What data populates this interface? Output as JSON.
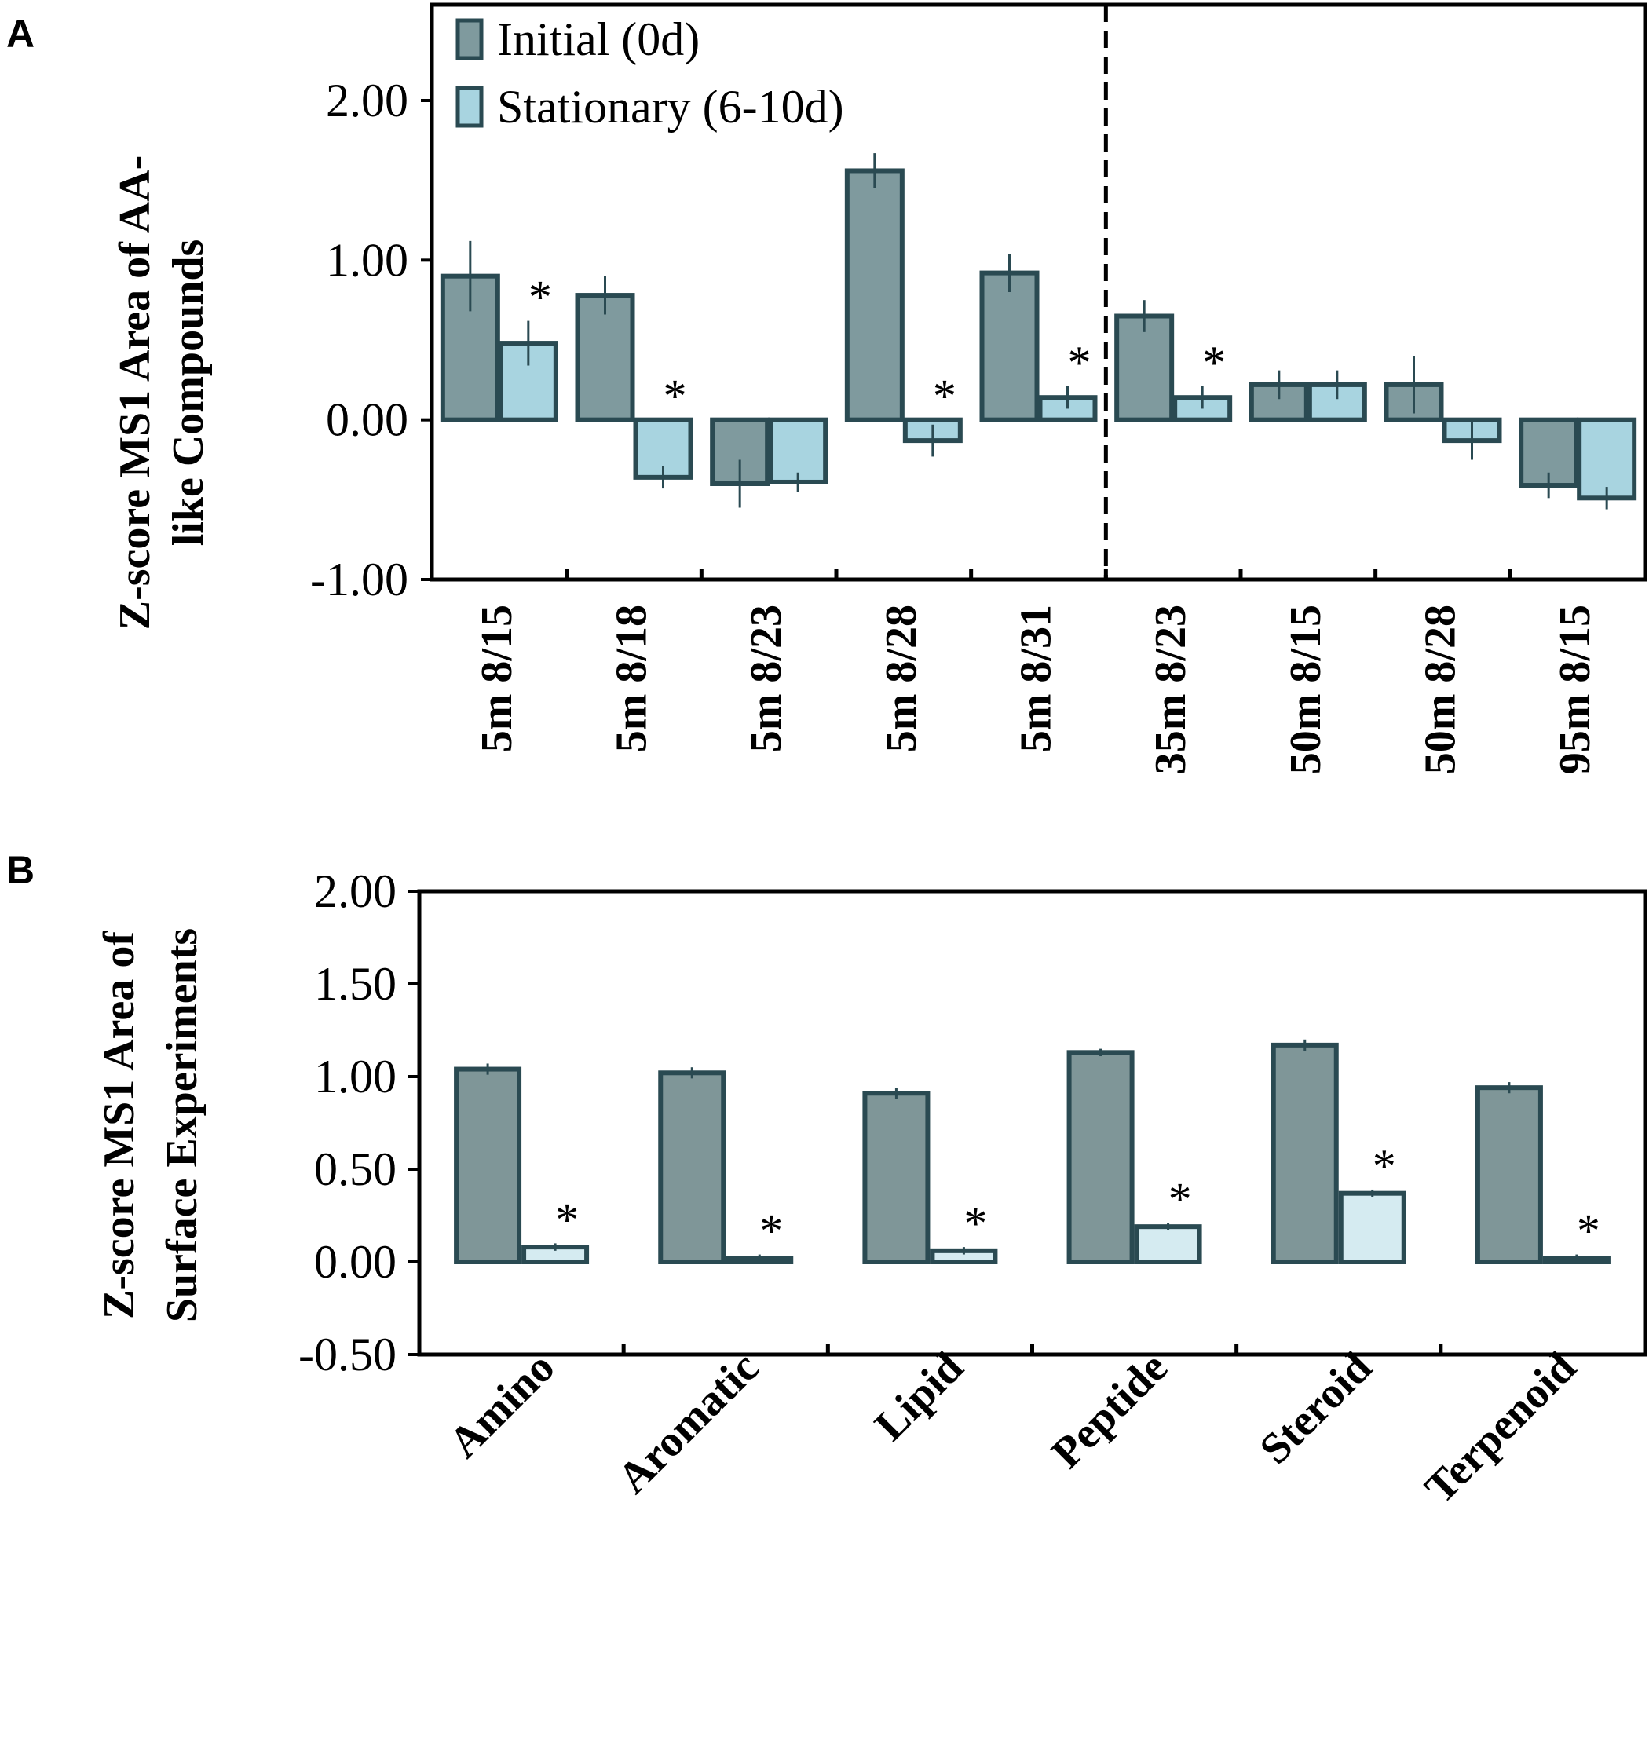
{
  "colors": {
    "initial_A": "#7f9a9e",
    "stationary_A": "#a8d4e0",
    "initial_B": "#7f9698",
    "stationary_B": "#d5ebf1",
    "edge": "#2a4a52",
    "axis": "#000000"
  },
  "chart_data": [
    {
      "panel": "A",
      "type": "bar",
      "title": "",
      "ylabel_lines": [
        "Z-score MS1 Area of AA-",
        "like Compounds"
      ],
      "xlabel": "",
      "ylim": [
        -1.0,
        2.6
      ],
      "yticks": [
        -1.0,
        0.0,
        1.0,
        2.0
      ],
      "ytick_labels": [
        "-1.00",
        "0.00",
        "1.00",
        "2.00"
      ],
      "legend": {
        "placement": "top-left",
        "entries": [
          "Initial (0d)",
          "Stationary (6-10d)"
        ]
      },
      "divider_after_category_index": 4,
      "categories": [
        "5m 8/15",
        "5m 8/18",
        "5m 8/23",
        "5m 8/28",
        "5m 8/31",
        "35m 8/23",
        "50m 8/15",
        "50m 8/28",
        "95m 8/15"
      ],
      "series": [
        {
          "name": "Initial (0d)",
          "values": [
            0.9,
            0.78,
            -0.4,
            1.56,
            0.92,
            0.65,
            0.22,
            0.22,
            -0.41
          ],
          "errors": [
            0.22,
            0.12,
            0.15,
            0.11,
            0.12,
            0.1,
            0.09,
            0.18,
            0.08
          ]
        },
        {
          "name": "Stationary (6-10d)",
          "values": [
            0.48,
            -0.36,
            -0.39,
            -0.13,
            0.14,
            0.14,
            0.22,
            -0.13,
            -0.49
          ],
          "errors": [
            0.14,
            0.07,
            0.06,
            0.1,
            0.07,
            0.07,
            0.09,
            0.12,
            0.07
          ]
        }
      ],
      "significance": [
        {
          "category_index": 0,
          "label": "*"
        },
        {
          "category_index": 1,
          "label": "*"
        },
        {
          "category_index": 3,
          "label": "*"
        },
        {
          "category_index": 4,
          "label": "*"
        },
        {
          "category_index": 5,
          "label": "*"
        }
      ]
    },
    {
      "panel": "B",
      "type": "bar",
      "title": "",
      "ylabel_lines": [
        "Z-score MS1 Area of",
        "Surface Experiments"
      ],
      "xlabel": "",
      "ylim": [
        -0.5,
        2.0
      ],
      "yticks": [
        -0.5,
        0.0,
        0.5,
        1.0,
        1.5,
        2.0
      ],
      "ytick_labels": [
        "-0.50",
        "0.00",
        "0.50",
        "1.00",
        "1.50",
        "2.00"
      ],
      "categories": [
        "Amino",
        "Aromatic",
        "Lipid",
        "Peptide",
        "Steroid",
        "Terpenoid"
      ],
      "series": [
        {
          "name": "Initial (0d)",
          "values": [
            1.04,
            1.02,
            0.91,
            1.13,
            1.17,
            0.94
          ],
          "errors": [
            0.03,
            0.03,
            0.03,
            0.02,
            0.03,
            0.03
          ]
        },
        {
          "name": "Stationary (6-10d)",
          "values": [
            0.08,
            0.02,
            0.06,
            0.19,
            0.37,
            0.02
          ],
          "errors": [
            0.02,
            0.02,
            0.02,
            0.02,
            0.02,
            0.02
          ]
        }
      ],
      "significance": [
        {
          "category_index": 0,
          "label": "*"
        },
        {
          "category_index": 1,
          "label": "*"
        },
        {
          "category_index": 2,
          "label": "*"
        },
        {
          "category_index": 3,
          "label": "*"
        },
        {
          "category_index": 4,
          "label": "*"
        },
        {
          "category_index": 5,
          "label": "*"
        }
      ]
    }
  ]
}
